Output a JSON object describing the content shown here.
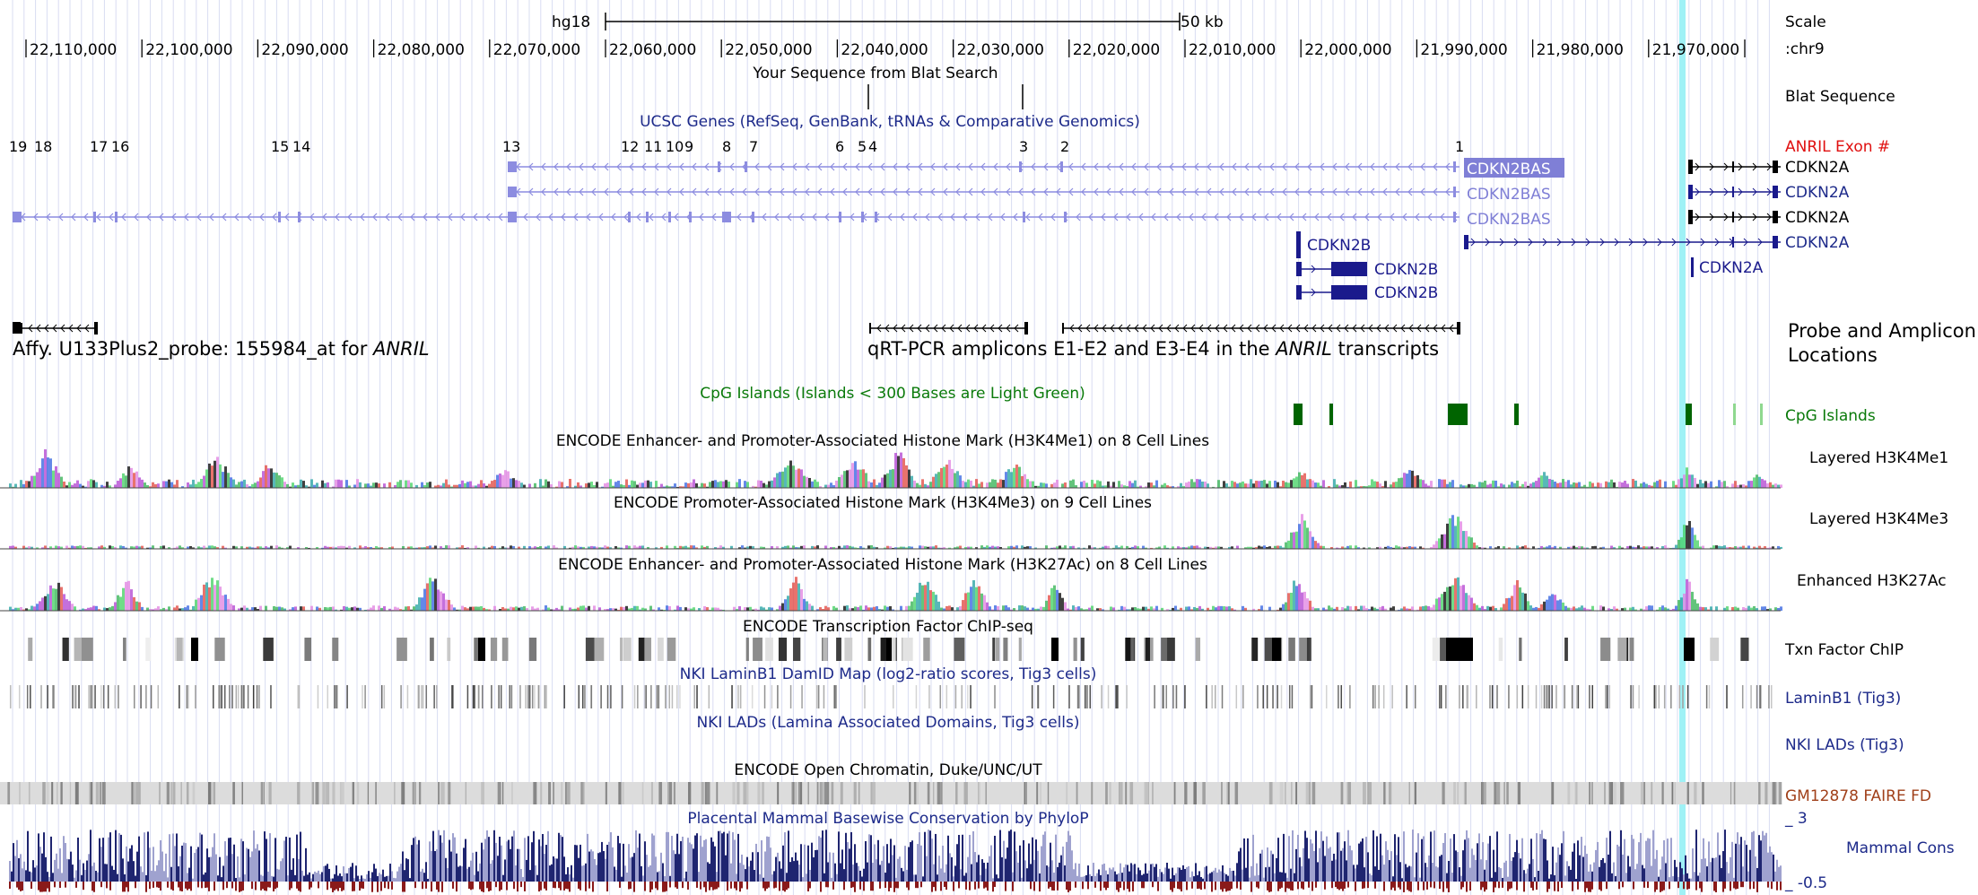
{
  "header": {
    "assembly": "hg18",
    "scale_bar_label": "50 kb",
    "scale_label": "Scale",
    "chrom_label": ":chr9"
  },
  "ruler": {
    "ticks": [
      "22,110,000",
      "22,100,000",
      "22,090,000",
      "22,080,000",
      "22,070,000",
      "22,060,000",
      "22,050,000",
      "22,040,000",
      "22,030,000",
      "22,020,000",
      "22,010,000",
      "22,000,000",
      "21,990,000",
      "21,980,000",
      "21,970,000"
    ]
  },
  "tracks": {
    "blat": {
      "title": "Your Sequence from Blat Search",
      "side_label": "Blat Sequence"
    },
    "ucsc_genes": {
      "title": "UCSC Genes (RefSeq, GenBank, tRNAs & Comparative Genomics)",
      "exon_header": "ANRIL Exon #",
      "exon_numbers": [
        "19",
        "18",
        "17",
        "16",
        "15",
        "14",
        "13",
        "12",
        "11",
        "10",
        "9",
        "8",
        "7",
        "6",
        "5",
        "4",
        "3",
        "2",
        "1"
      ],
      "gene_labels": [
        "CDKN2BAS",
        "CDKN2BAS",
        "CDKN2BAS",
        "CDKN2B",
        "CDKN2B",
        "CDKN2B",
        "CDKN2A",
        "CDKN2A",
        "CDKN2A",
        "CDKN2A",
        "CDKN2A"
      ]
    },
    "probe": {
      "left_label_prefix": "Affy. U133Plus2_probe: 155984_at for ",
      "left_label_italic": "ANRIL",
      "mid_label_prefix": "qRT-PCR amplicons  E1-E2 and E3-E4 in the ",
      "mid_label_italic": "ANRIL",
      "mid_label_suffix": " transcripts",
      "side_label_line1": "Probe and Amplicon",
      "side_label_line2": "Locations"
    },
    "cpg": {
      "title": "CpG Islands (Islands < 300 Bases are Light Green)",
      "side_label": "CpG Islands"
    },
    "h3k4me1": {
      "title": "ENCODE Enhancer- and Promoter-Associated Histone Mark (H3K4Me1) on 8 Cell Lines",
      "side_label": "Layered H3K4Me1"
    },
    "h3k4me3": {
      "title": "ENCODE Promoter-Associated Histone Mark (H3K4Me3) on 9 Cell Lines",
      "side_label": "Layered H3K4Me3"
    },
    "h3k27ac": {
      "title": "ENCODE Enhancer- and Promoter-Associated Histone Mark (H3K27Ac) on 8 Cell Lines",
      "side_label": "Enhanced H3K27Ac"
    },
    "tfbs": {
      "title": "ENCODE Transcription Factor ChIP-seq",
      "side_label": "Txn Factor ChIP"
    },
    "laminb1": {
      "title": "NKI LaminB1 DamID Map (log2-ratio scores, Tig3 cells)",
      "side_label": "LaminB1 (Tig3)"
    },
    "lads": {
      "title": "NKI LADs (Lamina Associated Domains, Tig3 cells)",
      "side_label": "NKI LADs (Tig3)"
    },
    "open_chromatin": {
      "title": "ENCODE Open Chromatin, Duke/UNC/UT",
      "side_label": "GM12878 FAIRE FD"
    },
    "phylop": {
      "title": "Placental Mammal Basewise Conservation by PhyloP",
      "side_label": "Mammal Cons",
      "ymax": "_ 3",
      "ymin": "_ -0.5"
    }
  },
  "colors": {
    "grid": "#d9dcf2",
    "gene_light": "#8c8ce0",
    "gene_dark": "#1a1a8c",
    "highlight": "#8eeef5",
    "cpg": "#006400",
    "cpg_light": "#8fd88f",
    "exon_header": "#e01010",
    "faire_label": "#a0401a",
    "navy_text": "#1d2a8a",
    "cons": "#1f2570",
    "cons_light": "#9fa2cf",
    "cons_neg": "#8a1a1a"
  }
}
